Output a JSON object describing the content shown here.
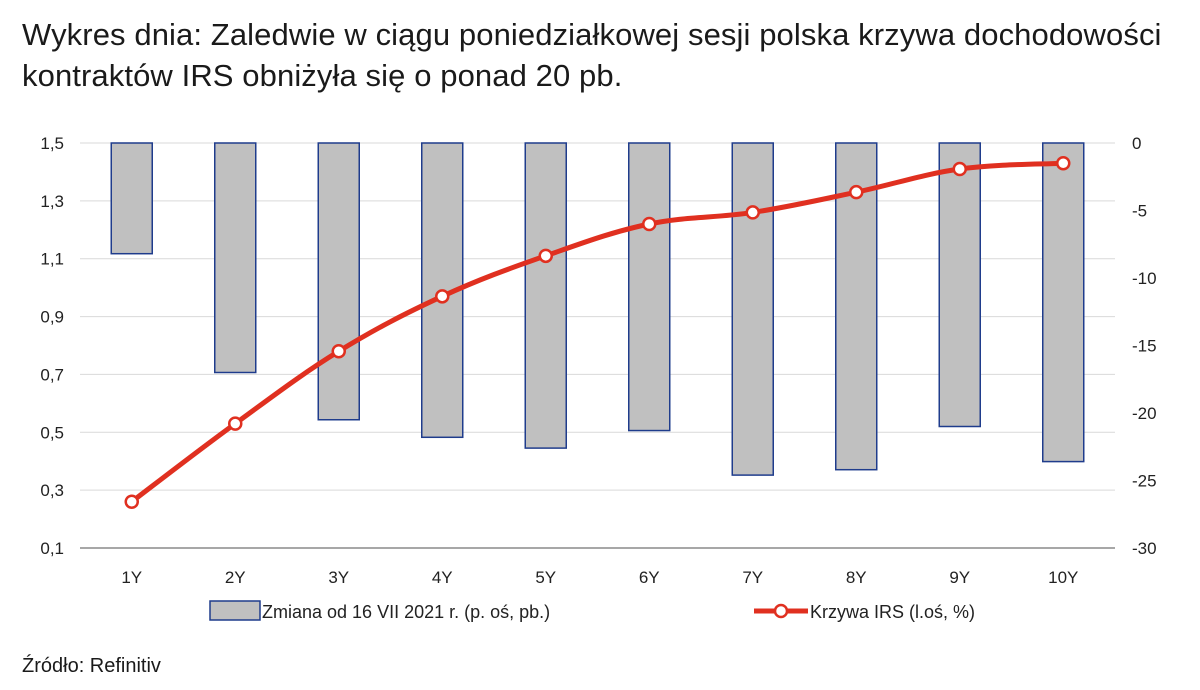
{
  "title": "Wykres dnia: Zaledwie w ciągu poniedziałkowej sesji polska krzywa dochodowości kontraktów IRS obniżyła się o ponad 20 pb.",
  "source": "Źródło: Refinitiv",
  "chart_data": {
    "type": "bar",
    "categories": [
      "1Y",
      "2Y",
      "3Y",
      "4Y",
      "5Y",
      "6Y",
      "7Y",
      "8Y",
      "9Y",
      "10Y"
    ],
    "left_axis": {
      "min": 0.1,
      "max": 1.5,
      "ticks": [
        "0,1",
        "0,3",
        "0,5",
        "0,7",
        "0,9",
        "1,1",
        "1,3",
        "1,5"
      ],
      "values": [
        0.1,
        0.3,
        0.5,
        0.7,
        0.9,
        1.1,
        1.3,
        1.5
      ]
    },
    "right_axis": {
      "min": -30,
      "max": 0,
      "ticks": [
        "-30",
        "-25",
        "-20",
        "-15",
        "-10",
        "-5",
        "0"
      ],
      "values": [
        -30,
        -25,
        -20,
        -15,
        -10,
        -5,
        0
      ]
    },
    "grid": true,
    "legend_position": "bottom",
    "series": [
      {
        "name": "Zmiana od 16 VII 2021 r. (p. oś, pb.)",
        "type": "bar",
        "axis": "right",
        "color": "#c0c0c0",
        "edge_color": "#1f3c8c",
        "values": [
          -8.2,
          -17.0,
          -20.5,
          -21.8,
          -22.6,
          -21.3,
          -24.6,
          -24.2,
          -21.0,
          -23.6
        ]
      },
      {
        "name": "Krzywa IRS (l.oś, %)",
        "type": "line",
        "axis": "left",
        "color": "#e03020",
        "values": [
          0.26,
          0.53,
          0.78,
          0.97,
          1.11,
          1.22,
          1.26,
          1.33,
          1.41,
          1.43
        ]
      }
    ]
  }
}
